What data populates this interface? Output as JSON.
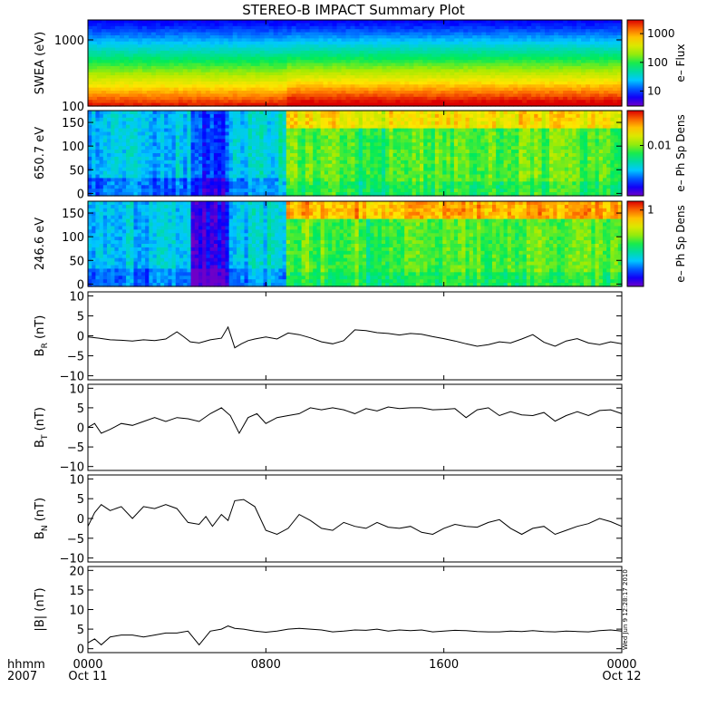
{
  "chart_data": {
    "title": "STEREO-B IMPACT Summary Plot",
    "stamp": "Wed Jun  9 12:28:17 2010",
    "x_axis": {
      "type": "time",
      "range": [
        "2007-10-11 00:00",
        "2007-10-12 00:00"
      ],
      "ticks": [
        {
          "time": "2007-10-11 00:00",
          "label1": "0000",
          "label2": "Oct 11"
        },
        {
          "time": "2007-10-11 08:00",
          "label1": "0800",
          "label2": ""
        },
        {
          "time": "2007-10-11 16:00",
          "label1": "1600",
          "label2": ""
        },
        {
          "time": "2007-10-12 00:00",
          "label1": "0000",
          "label2": "Oct 12"
        }
      ],
      "left_label1": "hhmm",
      "left_label2": "2007"
    },
    "panels": [
      {
        "type": "heatmap",
        "ylabel": "SWEA (eV)",
        "yscale": "log",
        "ylim": [
          100,
          2000
        ],
        "yticks": [
          {
            "v": 100,
            "label": "100"
          },
          {
            "v": 1000,
            "label": "1000"
          }
        ],
        "colorbar": {
          "label": "e– Flux",
          "scale": "log",
          "range": [
            3,
            3000
          ],
          "ticks": [
            {
              "v": 10,
              "label": "10"
            },
            {
              "v": 100,
              "label": "100"
            },
            {
              "v": 1000,
              "label": "1000"
            }
          ]
        }
      },
      {
        "type": "heatmap",
        "ylabel": "650.7 eV",
        "yscale": "linear",
        "ylim": [
          -5,
          175
        ],
        "yticks": [
          {
            "v": 0,
            "label": "0"
          },
          {
            "v": 50,
            "label": "50"
          },
          {
            "v": 100,
            "label": "100"
          },
          {
            "v": 150,
            "label": "150"
          }
        ],
        "colorbar": {
          "label": "e– Ph Sp Dens",
          "scale": "log",
          "range": [
            0.0005,
            0.08
          ],
          "ticks": [
            {
              "v": 0.01,
              "label": "0.01"
            }
          ]
        }
      },
      {
        "type": "heatmap",
        "ylabel": "246.6 eV",
        "yscale": "linear",
        "ylim": [
          -5,
          175
        ],
        "yticks": [
          {
            "v": 0,
            "label": "0"
          },
          {
            "v": 50,
            "label": "50"
          },
          {
            "v": 100,
            "label": "100"
          },
          {
            "v": 150,
            "label": "150"
          }
        ],
        "colorbar": {
          "label": "e– Ph Sp Dens",
          "scale": "log",
          "range": [
            0.03,
            1.5
          ],
          "ticks": [
            {
              "v": 1,
              "label": "1"
            }
          ]
        }
      },
      {
        "type": "line",
        "ylabel": "B",
        "ylabel_sub": "R",
        "ylabel_unit": " (nT)",
        "ylim": [
          -11,
          11
        ],
        "yticks": [
          {
            "v": -10,
            "label": "−10"
          },
          {
            "v": -5,
            "label": "−5"
          },
          {
            "v": 0,
            "label": "0"
          },
          {
            "v": 5,
            "label": "5"
          },
          {
            "v": 10,
            "label": "10"
          }
        ],
        "series": [
          {
            "x_hours": [
              0,
              0.5,
              1,
              1.5,
              2,
              2.5,
              3,
              3.5,
              4,
              4.3,
              4.6,
              5,
              5.5,
              6,
              6.3,
              6.6,
              6.9,
              7.2,
              7.5,
              8,
              8.5,
              9,
              9.5,
              10,
              10.5,
              11,
              11.5,
              12,
              12.5,
              13,
              13.5,
              14,
              14.5,
              15,
              15.5,
              16,
              16.5,
              17,
              17.5,
              18,
              18.5,
              19,
              19.5,
              20,
              20.5,
              21,
              21.5,
              22,
              22.5,
              23,
              23.5,
              24
            ],
            "values": [
              -0.3,
              -0.6,
              -1,
              -1.1,
              -1.3,
              -1,
              -1.2,
              -0.8,
              1,
              -0.2,
              -1.5,
              -1.8,
              -1,
              -0.6,
              2.2,
              -3,
              -2,
              -1.2,
              -0.8,
              -0.3,
              -0.8,
              0.7,
              0.3,
              -0.5,
              -1.5,
              -2,
              -1.2,
              1.5,
              1.3,
              0.8,
              0.6,
              0.2,
              0.6,
              0.4,
              -0.2,
              -0.7,
              -1.3,
              -2,
              -2.6,
              -2.2,
              -1.5,
              -1.8,
              -0.8,
              0.3,
              -1.6,
              -2.6,
              -1.3,
              -0.7,
              -1.8,
              -2.2,
              -1.5,
              -2
            ]
          }
        ]
      },
      {
        "type": "line",
        "ylabel": "B",
        "ylabel_sub": "T",
        "ylabel_unit": " (nT)",
        "ylim": [
          -11,
          11
        ],
        "yticks": [
          {
            "v": -10,
            "label": "−10"
          },
          {
            "v": -5,
            "label": "−5"
          },
          {
            "v": 0,
            "label": "0"
          },
          {
            "v": 5,
            "label": "5"
          },
          {
            "v": 10,
            "label": "10"
          }
        ],
        "series": [
          {
            "x_hours": [
              0,
              0.3,
              0.6,
              1,
              1.5,
              2,
              2.5,
              3,
              3.5,
              4,
              4.5,
              5,
              5.5,
              6,
              6.4,
              6.8,
              7.2,
              7.6,
              8,
              8.5,
              9,
              9.5,
              10,
              10.5,
              11,
              11.5,
              12,
              12.5,
              13,
              13.5,
              14,
              14.5,
              15,
              15.5,
              16,
              16.5,
              17,
              17.5,
              18,
              18.5,
              19,
              19.5,
              20,
              20.5,
              21,
              21.5,
              22,
              22.5,
              23,
              23.5,
              24
            ],
            "values": [
              0,
              1,
              -1.5,
              -0.5,
              1,
              0.5,
              1.5,
              2.5,
              1.5,
              2.5,
              2.2,
              1.5,
              3.5,
              5,
              3,
              -1.5,
              2.5,
              3.5,
              1,
              2.5,
              3,
              3.5,
              5,
              4.5,
              5,
              4.5,
              3.5,
              4.8,
              4.2,
              5.2,
              4.8,
              5,
              5,
              4.5,
              4.6,
              4.8,
              2.5,
              4.5,
              5,
              3,
              4,
              3.2,
              3,
              3.8,
              1.6,
              3,
              4,
              3,
              4.3,
              4.5,
              3.5
            ]
          }
        ]
      },
      {
        "type": "line",
        "ylabel": "B",
        "ylabel_sub": "N",
        "ylabel_unit": " (nT)",
        "ylim": [
          -11,
          11
        ],
        "yticks": [
          {
            "v": -10,
            "label": "−10"
          },
          {
            "v": -5,
            "label": "−5"
          },
          {
            "v": 0,
            "label": "0"
          },
          {
            "v": 5,
            "label": "5"
          },
          {
            "v": 10,
            "label": "10"
          }
        ],
        "series": [
          {
            "x_hours": [
              0,
              0.3,
              0.6,
              1,
              1.5,
              2,
              2.5,
              3,
              3.5,
              4,
              4.5,
              5,
              5.3,
              5.6,
              6,
              6.3,
              6.6,
              7,
              7.5,
              8,
              8.5,
              9,
              9.5,
              10,
              10.5,
              11,
              11.5,
              12,
              12.5,
              13,
              13.5,
              14,
              14.5,
              15,
              15.5,
              16,
              16.5,
              17,
              17.5,
              18,
              18.5,
              19,
              19.5,
              20,
              20.5,
              21,
              21.5,
              22,
              22.5,
              23,
              23.5,
              24
            ],
            "values": [
              -2,
              1.5,
              3.5,
              2,
              3,
              0,
              3,
              2.5,
              3.5,
              2.5,
              -1,
              -1.5,
              0.5,
              -2,
              1,
              -0.5,
              4.5,
              4.8,
              3,
              -3,
              -4,
              -2.5,
              1,
              -0.5,
              -2.5,
              -3,
              -1,
              -2,
              -2.5,
              -1,
              -2.2,
              -2.5,
              -2,
              -3.5,
              -4,
              -2.5,
              -1.5,
              -2,
              -2.2,
              -1,
              -0.3,
              -2.5,
              -4,
              -2.5,
              -2,
              -4,
              -3,
              -2,
              -1.3,
              0,
              -0.8,
              -2
            ]
          }
        ]
      },
      {
        "type": "line",
        "ylabel": "|B| (nT)",
        "ylabel_sub": "",
        "ylabel_unit": "",
        "ylim": [
          -1,
          21
        ],
        "yticks": [
          {
            "v": 0,
            "label": "0"
          },
          {
            "v": 5,
            "label": "5"
          },
          {
            "v": 10,
            "label": "10"
          },
          {
            "v": 15,
            "label": "15"
          },
          {
            "v": 20,
            "label": "20"
          }
        ],
        "series": [
          {
            "x_hours": [
              0,
              0.3,
              0.6,
              1,
              1.5,
              2,
              2.5,
              3,
              3.5,
              4,
              4.5,
              5,
              5.5,
              6,
              6.3,
              6.6,
              7,
              7.5,
              8,
              8.5,
              9,
              9.5,
              10,
              10.5,
              11,
              11.5,
              12,
              12.5,
              13,
              13.5,
              14,
              14.5,
              15,
              15.5,
              16,
              16.5,
              17,
              17.5,
              18,
              18.5,
              19,
              19.5,
              20,
              20.5,
              21,
              21.5,
              22,
              22.5,
              23,
              23.5,
              24
            ],
            "values": [
              1.5,
              2.5,
              1,
              3,
              3.5,
              3.5,
              3,
              3.5,
              4,
              4,
              4.5,
              1,
              4.5,
              5,
              5.8,
              5.2,
              5,
              4.5,
              4.2,
              4.5,
              5,
              5.2,
              5,
              4.8,
              4.3,
              4.5,
              4.8,
              4.7,
              5,
              4.5,
              4.8,
              4.6,
              4.8,
              4.3,
              4.5,
              4.7,
              4.6,
              4.4,
              4.3,
              4.3,
              4.5,
              4.4,
              4.6,
              4.4,
              4.3,
              4.5,
              4.4,
              4.3,
              4.6,
              4.8,
              4.5
            ]
          }
        ]
      }
    ]
  }
}
